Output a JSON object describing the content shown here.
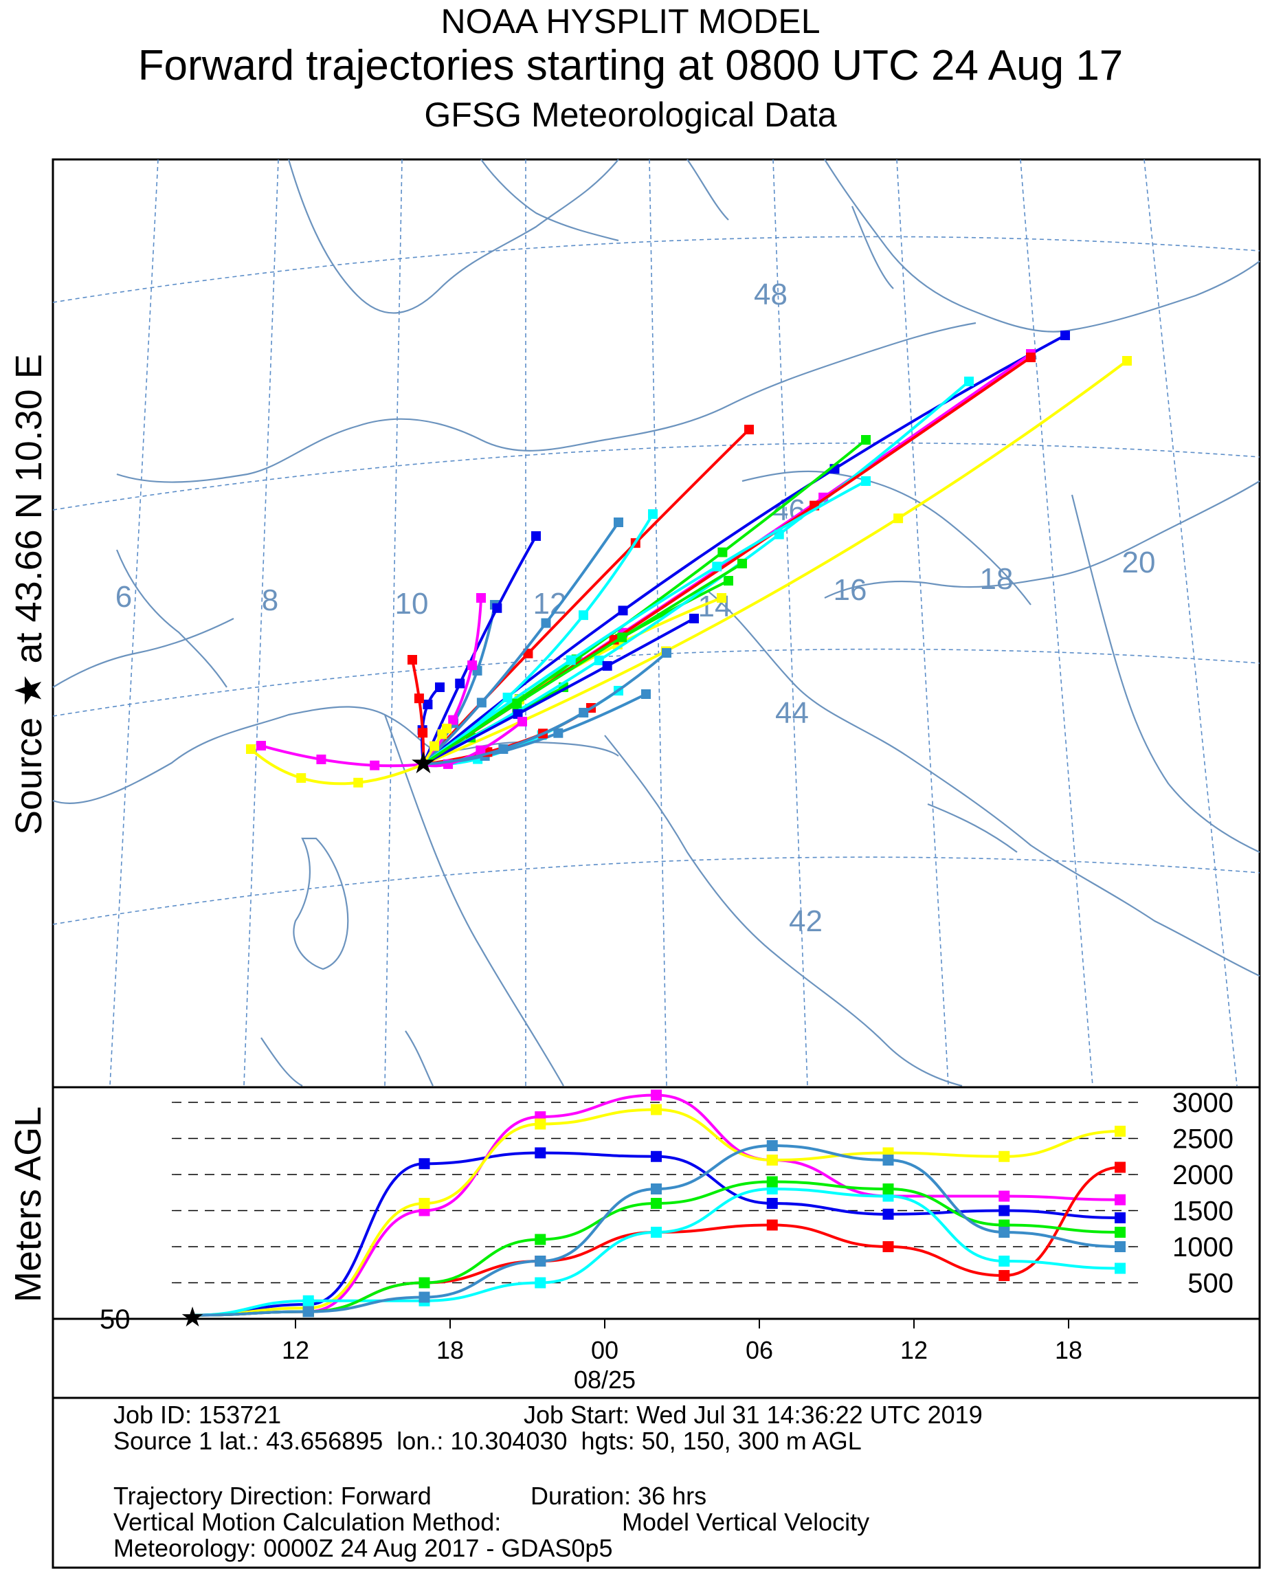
{
  "header": {
    "line1": "NOAA HYSPLIT MODEL",
    "line2": "Forward trajectories starting at 0800 UTC 24 Aug 17",
    "line3": "GFSG Meteorological Data"
  },
  "side_labels": {
    "source": "Source ★ at 43.66 N 10.30 E",
    "meters": "Meters AGL"
  },
  "colors": {
    "map_lines": "#6b93be",
    "grid_lines": "#5b8dc8",
    "series": [
      "#0000ee",
      "#ff00ff",
      "#ffff00",
      "#ff0000",
      "#00ffff",
      "#00ee00",
      "#3a8cc8"
    ]
  },
  "chart_data": [
    {
      "type": "line",
      "title": "Forward trajectories starting at 0800 UTC 24 Aug 17",
      "projection": "map",
      "source": {
        "lat": 43.66,
        "lon": 10.3
      },
      "lat_labels": [
        "48",
        "46",
        "44",
        "42"
      ],
      "lon_labels": [
        "6",
        "8",
        "10",
        "12",
        "14",
        "16",
        "18",
        "20"
      ],
      "trajectory_count": 28
    },
    {
      "type": "line",
      "title": "",
      "ylabel": "Meters AGL",
      "xlabel": "08/25",
      "x_tick_labels": [
        "12",
        "18",
        "00",
        "06",
        "12",
        "18"
      ],
      "y_tick_labels": [
        "3000",
        "2500",
        "2000",
        "1500",
        "1000",
        "500"
      ],
      "start_label": "50",
      "ylim": [
        0,
        3200
      ],
      "x_hours_range": [
        0,
        36
      ],
      "series": [
        {
          "color": "#0000ee",
          "height_m": [
            50,
            200,
            2150,
            2300,
            2250,
            1600,
            1450,
            1500,
            1400
          ]
        },
        {
          "color": "#ff00ff",
          "height_m": [
            50,
            100,
            1500,
            2800,
            3100,
            2200,
            1700,
            1700,
            1650
          ]
        },
        {
          "color": "#ffff00",
          "height_m": [
            50,
            150,
            1600,
            2700,
            2900,
            2200,
            2300,
            2250,
            2600
          ]
        },
        {
          "color": "#ff0000",
          "height_m": [
            50,
            100,
            500,
            800,
            1200,
            1300,
            1000,
            600,
            2100
          ]
        },
        {
          "color": "#00ffff",
          "height_m": [
            50,
            250,
            250,
            500,
            1200,
            1800,
            1700,
            800,
            700
          ]
        },
        {
          "color": "#00ee00",
          "height_m": [
            50,
            100,
            500,
            1100,
            1600,
            1900,
            1800,
            1300,
            1200
          ]
        },
        {
          "color": "#3a8cc8",
          "height_m": [
            50,
            100,
            300,
            800,
            1800,
            2400,
            2200,
            1200,
            1000
          ]
        }
      ]
    }
  ],
  "footer": {
    "job_id": "Job ID: 153721",
    "job_start": "Job Start: Wed Jul 31 14:36:22 UTC 2019",
    "source_line": "Source 1 lat.: 43.656895  lon.: 10.304030  hgts: 50, 150, 300 m AGL",
    "direction": "Trajectory Direction: Forward",
    "duration": "Duration: 36 hrs",
    "vmotion_label": "Vertical Motion Calculation Method:",
    "vmotion_value": "Model Vertical Velocity",
    "meteorology": "Meteorology: 0000Z 24 Aug 2017 - GDAS0p5"
  }
}
